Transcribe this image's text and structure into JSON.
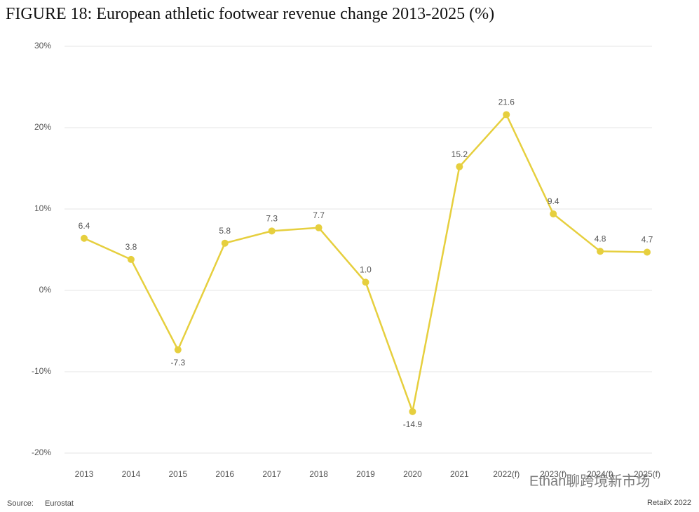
{
  "chart_data": {
    "type": "line",
    "title": "FIGURE 18: European athletic footwear revenue change 2013-2025 (%)",
    "categories": [
      "2013",
      "2014",
      "2015",
      "2016",
      "2017",
      "2018",
      "2019",
      "2020",
      "2021",
      "2022(f)",
      "2023(f)",
      "2024(f)",
      "2025(f)"
    ],
    "series": [
      {
        "name": "Revenue change",
        "color": "#e6cf3e",
        "values": [
          6.4,
          3.8,
          -7.3,
          5.8,
          7.3,
          7.7,
          1.0,
          -14.9,
          15.2,
          21.6,
          9.4,
          4.8,
          4.7
        ],
        "value_labels": [
          "6.4",
          "3.8",
          "-7.3",
          "5.8",
          "7.3",
          "7.7",
          "1.0",
          "-14.9",
          "15.2",
          "21.6",
          "9.4",
          "4.8",
          "4.7"
        ]
      }
    ],
    "ylim": [
      -20,
      30
    ],
    "yticks": [
      {
        "value": -20,
        "label": "-20%"
      },
      {
        "value": -10,
        "label": "-10%"
      },
      {
        "value": 0,
        "label": "0%"
      },
      {
        "value": 10,
        "label": "10%"
      },
      {
        "value": 20,
        "label": "20%"
      },
      {
        "value": 30,
        "label": "30%"
      }
    ],
    "grid": true,
    "source_label": "Source:",
    "source": "Eurostat",
    "credit": "RetailX 2022"
  },
  "watermark": "Ethan聊跨境新市场"
}
